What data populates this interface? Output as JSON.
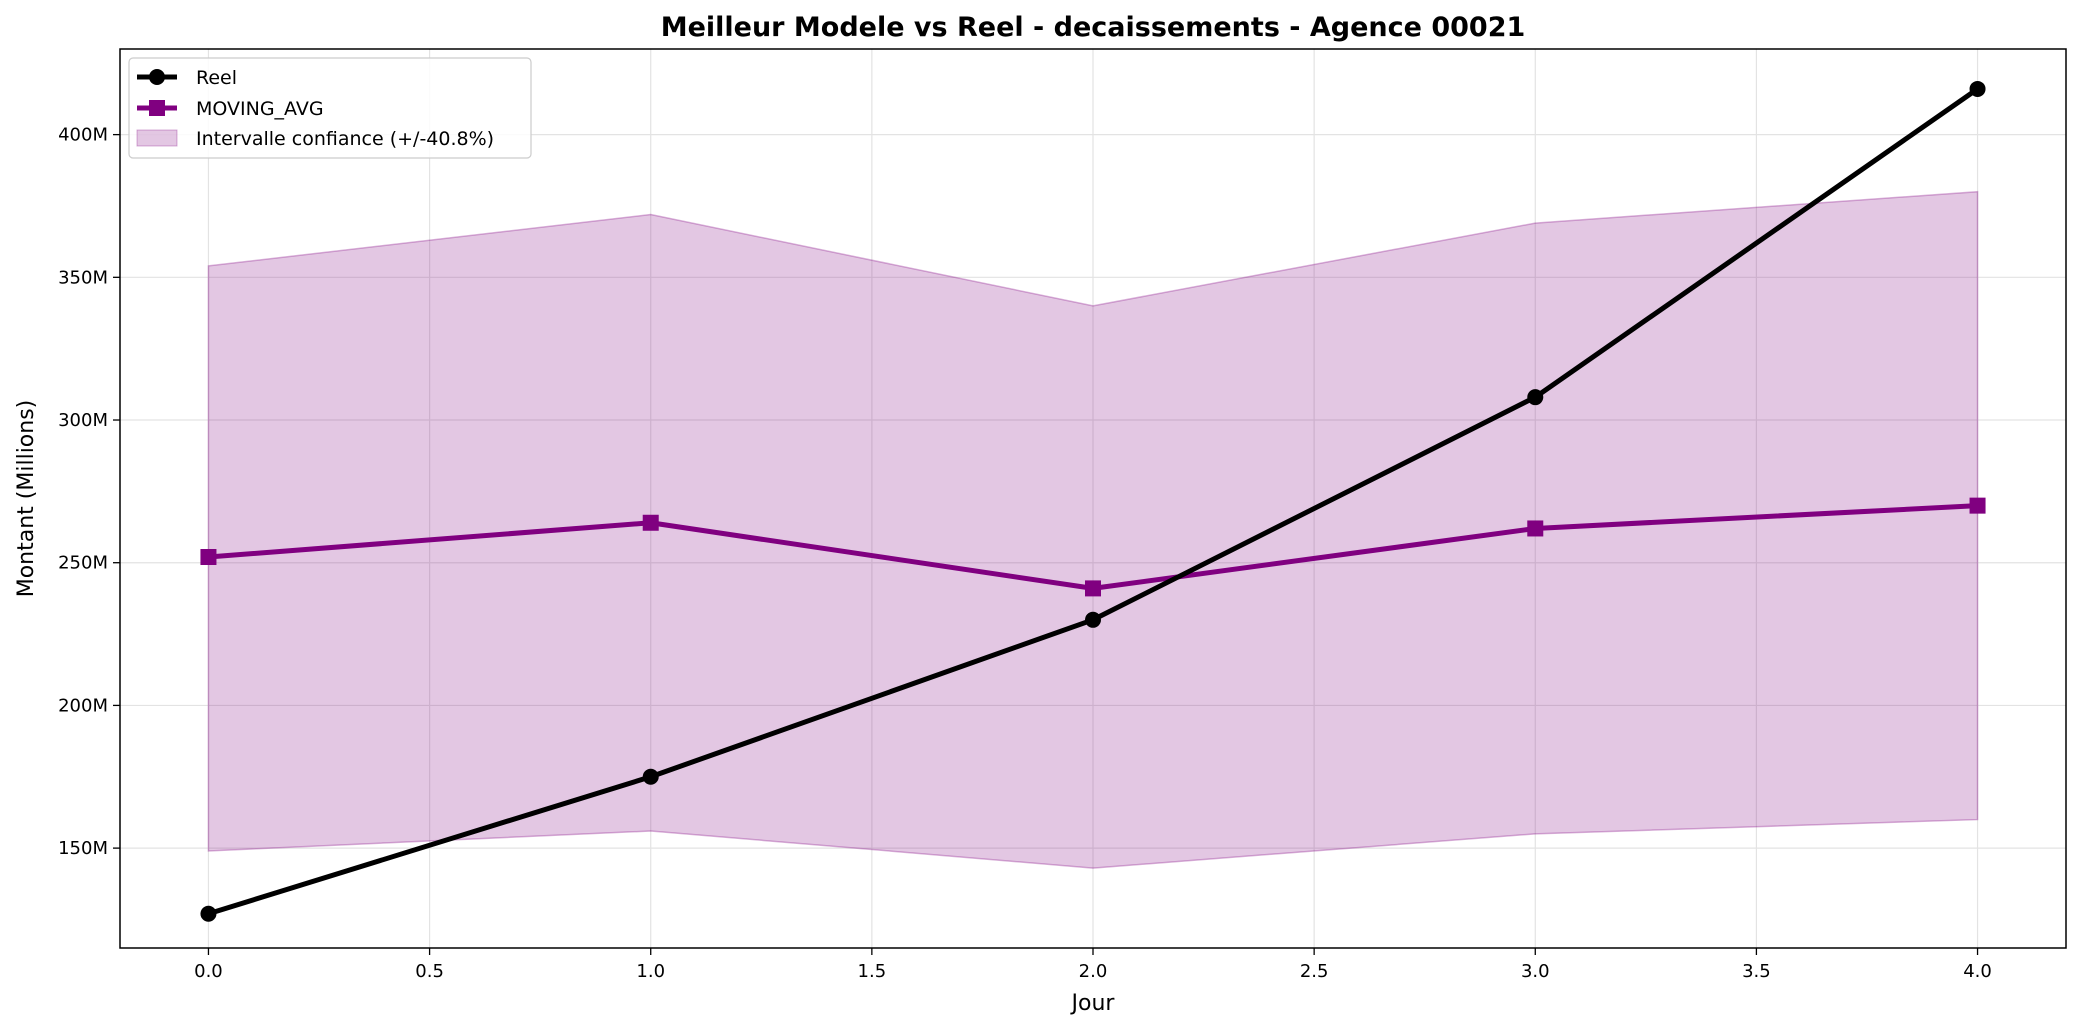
{
  "chart_data": {
    "type": "line",
    "title": "Meilleur Modele vs Reel - decaissements - Agence 00021",
    "xlabel": "Jour",
    "ylabel": "Montant (Millions)",
    "x": [
      0,
      1,
      2,
      3,
      4
    ],
    "xlim": [
      -0.2,
      4.2
    ],
    "ylim": [
      115,
      430
    ],
    "x_ticks": [
      0.0,
      0.5,
      1.0,
      1.5,
      2.0,
      2.5,
      3.0,
      3.5,
      4.0
    ],
    "x_tick_labels": [
      "0.0",
      "0.5",
      "1.0",
      "1.5",
      "2.0",
      "2.5",
      "3.0",
      "3.5",
      "4.0"
    ],
    "y_ticks": [
      150,
      200,
      250,
      300,
      350,
      400
    ],
    "y_tick_labels": [
      "150M",
      "200M",
      "250M",
      "300M",
      "350M",
      "400M"
    ],
    "grid": true,
    "legend_position": "top-left",
    "series": [
      {
        "name": "Reel",
        "values": [
          127,
          175,
          230,
          308,
          416
        ],
        "color": "#000000",
        "marker": "circle"
      },
      {
        "name": "MOVING_AVG",
        "values": [
          252,
          264,
          241,
          262,
          270
        ],
        "color": "#800080",
        "marker": "square"
      }
    ],
    "band": {
      "name": "Intervalle confiance (+/-40.8%)",
      "lower": [
        149,
        156,
        143,
        155,
        160
      ],
      "upper": [
        354,
        372,
        340,
        369,
        380
      ],
      "color": "#800080",
      "opacity": 0.22
    }
  }
}
